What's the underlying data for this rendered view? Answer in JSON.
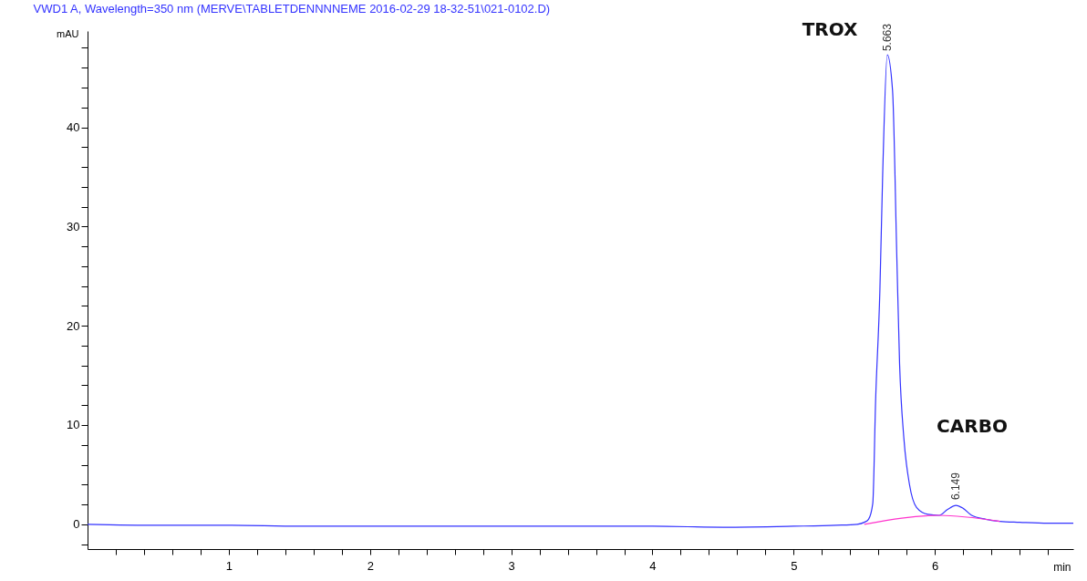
{
  "chart_data": {
    "type": "line",
    "title": "VWD1 A, Wavelength=350 nm (MERVE\\TABLETDENNNNEME 2016-02-29 18-32-51\\021-0102.D)",
    "xlabel": "min",
    "ylabel": "mAU",
    "xlim": [
      0,
      6.98
    ],
    "ylim": [
      -2.5,
      49.7
    ],
    "xticks": [
      {
        "value": 0.2,
        "label": null
      },
      {
        "value": 0.4,
        "label": null
      },
      {
        "value": 0.6,
        "label": null
      },
      {
        "value": 0.8,
        "label": null
      },
      1,
      {
        "value": 1.2,
        "label": null
      },
      {
        "value": 1.4,
        "label": null
      },
      {
        "value": 1.6,
        "label": null
      },
      {
        "value": 1.8,
        "label": null
      },
      2,
      {
        "value": 2.2,
        "label": null
      },
      {
        "value": 2.4,
        "label": null
      },
      {
        "value": 2.6,
        "label": null
      },
      {
        "value": 2.8,
        "label": null
      },
      3,
      {
        "value": 3.2,
        "label": null
      },
      {
        "value": 3.4,
        "label": null
      },
      {
        "value": 3.6,
        "label": null
      },
      {
        "value": 3.8,
        "label": null
      },
      4,
      {
        "value": 4.2,
        "label": null
      },
      {
        "value": 4.4,
        "label": null
      },
      {
        "value": 4.6,
        "label": null
      },
      {
        "value": 4.8,
        "label": null
      },
      5,
      {
        "value": 5.2,
        "label": null
      },
      {
        "value": 5.4,
        "label": null
      },
      {
        "value": 5.6,
        "label": null
      },
      {
        "value": 5.8,
        "label": null
      },
      6,
      {
        "value": 6.2,
        "label": null
      },
      {
        "value": 6.4,
        "label": null
      },
      {
        "value": 6.6,
        "label": null
      },
      {
        "value": 6.8,
        "label": null
      }
    ],
    "yticks": [
      {
        "value": -2,
        "label": null
      },
      0,
      {
        "value": 2,
        "label": null
      },
      {
        "value": 4,
        "label": null
      },
      {
        "value": 6,
        "label": null
      },
      {
        "value": 8,
        "label": null
      },
      10,
      {
        "value": 12,
        "label": null
      },
      {
        "value": 14,
        "label": null
      },
      {
        "value": 16,
        "label": null
      },
      {
        "value": 18,
        "label": null
      },
      20,
      {
        "value": 22,
        "label": null
      },
      {
        "value": 24,
        "label": null
      },
      {
        "value": 26,
        "label": null
      },
      {
        "value": 28,
        "label": null
      },
      30,
      {
        "value": 32,
        "label": null
      },
      {
        "value": 34,
        "label": null
      },
      {
        "value": 36,
        "label": null
      },
      {
        "value": 38,
        "label": null
      },
      40,
      {
        "value": 42,
        "label": null
      },
      {
        "value": 44,
        "label": null
      },
      {
        "value": 46,
        "label": null
      },
      {
        "value": 48,
        "label": null
      }
    ],
    "grid": false,
    "legend": false,
    "marker": "none",
    "line_style": "solid",
    "series": [
      {
        "color": "#3333ff",
        "x": [
          0,
          0.5,
          1.0,
          1.5,
          2.0,
          3.0,
          4.0,
          4.5,
          5.0,
          5.3,
          5.45,
          5.5,
          5.53,
          5.56,
          5.58,
          5.61,
          5.63,
          5.663,
          5.7,
          5.73,
          5.75,
          5.78,
          5.82,
          5.87,
          5.95,
          6.03,
          6.09,
          6.149,
          6.2,
          6.26,
          6.36,
          6.46,
          6.6,
          6.8,
          6.98
        ],
        "values": [
          0,
          -0.1,
          -0.1,
          -0.2,
          -0.2,
          -0.2,
          -0.2,
          -0.3,
          -0.2,
          -0.1,
          0,
          0.2,
          0.5,
          2.1,
          12.4,
          23.4,
          35.2,
          47.3,
          43.7,
          27.1,
          16.1,
          8.7,
          4.0,
          1.7,
          1.0,
          0.9,
          1.5,
          1.9,
          1.6,
          0.9,
          0.5,
          0.3,
          0.2,
          0.1,
          0.1
        ]
      },
      {
        "color": "#ff33cc",
        "x": [
          5.5,
          6.03,
          6.46
        ],
        "values": [
          0.0,
          0.9,
          0.3
        ]
      }
    ],
    "annotations": [
      "TROX",
      {
        "text": "5.663",
        "x": 5.663,
        "y": 47.3
      },
      "CARBO",
      {
        "text": "6.149",
        "x": 6.149,
        "y": 1.9
      }
    ]
  }
}
